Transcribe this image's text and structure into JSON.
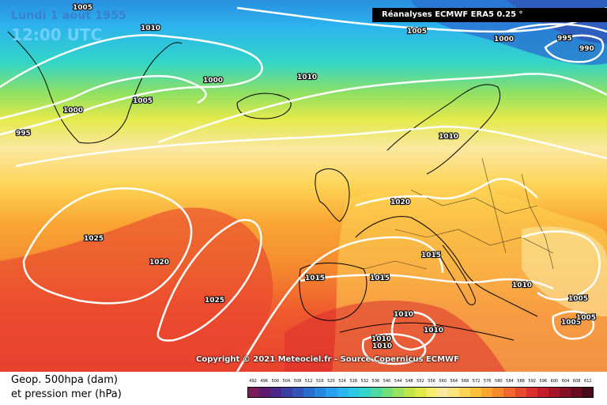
{
  "header": {
    "date": "Lundi 1 août 1955",
    "time": "12:00 UTC",
    "source": "Réanalyses ECMWF ERA5 0.25 °"
  },
  "copyright": "Copyright © 2021 Meteociel.fr - Source Copernicus ECMWF",
  "legend": {
    "line1": "Geop. 500hpa (dam)",
    "line2": "et pression mer (hPa)",
    "scale_values": [
      "492",
      "496",
      "500",
      "504",
      "508",
      "512",
      "516",
      "520",
      "524",
      "528",
      "532",
      "536",
      "540",
      "544",
      "548",
      "552",
      "556",
      "560",
      "564",
      "568",
      "572",
      "576",
      "580",
      "584",
      "588",
      "592",
      "596",
      "600",
      "604",
      "608",
      "612"
    ],
    "scale_colors": [
      "#7a1d56",
      "#5b1a6b",
      "#4a2a86",
      "#3a3fa0",
      "#3156b8",
      "#2a6ecf",
      "#2a87e0",
      "#2aa0ec",
      "#2bb6ee",
      "#2cc9e4",
      "#33d6c8",
      "#4cdca2",
      "#6fe07c",
      "#98e35c",
      "#c0e64a",
      "#e2ea4a",
      "#f6ec6e",
      "#fbe9a0",
      "#fde37e",
      "#fdd455",
      "#fcc03c",
      "#f9a633",
      "#f5892f",
      "#f06a2d",
      "#e84a2e",
      "#dc2f2f",
      "#c41e2d",
      "#a51429",
      "#861026",
      "#680c22",
      "#4a081c"
    ]
  },
  "isobar_labels": [
    "1005",
    "1010",
    "1005",
    "1000",
    "995",
    "990",
    "1000",
    "1010",
    "1005",
    "1000",
    "995",
    "1010",
    "1020",
    "1025",
    "1020",
    "1015",
    "1015",
    "1015",
    "1010",
    "1010",
    "1010",
    "1010",
    "1005",
    "1005",
    "1010",
    "1025",
    "1005"
  ]
}
